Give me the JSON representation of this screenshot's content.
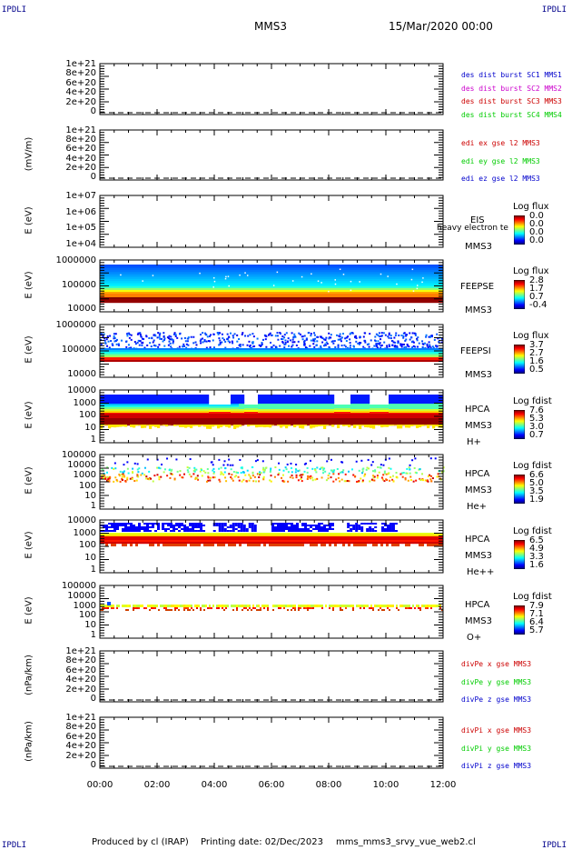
{
  "header": {
    "corner_label": "IPDLI",
    "mission": "MMS3",
    "datetime": "15/Mar/2020 00:00"
  },
  "footer": {
    "produced_by": "Produced by cl (IRAP)",
    "printing_date": "Printing date: 02/Dec/2023",
    "script": "mms_mms3_srvy_vue_web2.cl"
  },
  "colors": {
    "blue": "#0000cc",
    "magenta": "#cc00cc",
    "red": "#cc0000",
    "green": "#00cc00"
  },
  "chart_data": [
    {
      "type": "line",
      "panel": "des dist burst",
      "ylabel": "",
      "yticks": [
        "1e+21",
        "8e+20",
        "6e+20",
        "4e+20",
        "2e+20",
        "0"
      ],
      "ylim": [
        0,
        1e+21
      ],
      "grid": false,
      "series": [
        {
          "name": "des dist burst SC1 MMS1",
          "color": "#0000cc",
          "values": []
        },
        {
          "name": "des dist burst SC2 MMS2",
          "color": "#cc00cc",
          "values": []
        },
        {
          "name": "des dist burst SC3 MMS3",
          "color": "#cc0000",
          "values": []
        },
        {
          "name": "des dist burst SC4 MMS4",
          "color": "#00cc00",
          "values": []
        }
      ]
    },
    {
      "type": "line",
      "panel": "edi",
      "ylabel": "(mV/m)",
      "yticks": [
        "1e+21",
        "8e+20",
        "6e+20",
        "4e+20",
        "2e+20",
        "0"
      ],
      "ylim": [
        0,
        1e+21
      ],
      "grid": false,
      "series": [
        {
          "name": "edi ex gse l2 MMS3",
          "color": "#cc0000",
          "values": []
        },
        {
          "name": "edi ey gse l2 MMS3",
          "color": "#00cc00",
          "values": []
        },
        {
          "name": "edi ez gse l2 MMS3",
          "color": "#0000cc",
          "values": []
        }
      ]
    },
    {
      "type": "heatmap",
      "panel": "EIS",
      "ylabel": "E (eV)",
      "yticks": [
        "1e+07",
        "1e+06",
        "1e+05",
        "1e+04"
      ],
      "instrument": [
        "EIS",
        "heavy electron te",
        "MMS3"
      ],
      "colorbar": {
        "title": "Log flux",
        "values": [
          "0.0",
          "0.0",
          "0.0",
          "0.0"
        ]
      }
    },
    {
      "type": "heatmap",
      "panel": "FEEPSE",
      "ylabel": "E (eV)",
      "yticks": [
        "1000000",
        "100000",
        "10000"
      ],
      "instrument": [
        "FEEPSE",
        "MMS3"
      ],
      "colorbar": {
        "title": "Log flux",
        "values": [
          "2.8",
          "1.7",
          "0.7",
          "-0.4"
        ]
      }
    },
    {
      "type": "heatmap",
      "panel": "FEEPSI",
      "ylabel": "E (eV)",
      "yticks": [
        "1000000",
        "100000",
        "10000"
      ],
      "instrument": [
        "FEEPSI",
        "MMS3"
      ],
      "colorbar": {
        "title": "Log flux",
        "values": [
          "3.7",
          "2.7",
          "1.6",
          "0.5"
        ]
      }
    },
    {
      "type": "heatmap",
      "panel": "HPCA H+",
      "ylabel": "E (eV)",
      "yticks": [
        "10000",
        "1000",
        "100",
        "10",
        "1"
      ],
      "instrument": [
        "HPCA",
        "MMS3",
        "H+"
      ],
      "colorbar": {
        "title": "Log fdist",
        "values": [
          "7.6",
          "5.3",
          "3.0",
          "0.7"
        ]
      }
    },
    {
      "type": "heatmap",
      "panel": "HPCA He+",
      "ylabel": "E (eV)",
      "yticks": [
        "100000",
        "10000",
        "1000",
        "100",
        "10",
        "1"
      ],
      "instrument": [
        "HPCA",
        "MMS3",
        "He+"
      ],
      "colorbar": {
        "title": "Log fdist",
        "values": [
          "6.6",
          "5.0",
          "3.5",
          "1.9"
        ]
      }
    },
    {
      "type": "heatmap",
      "panel": "HPCA He++",
      "ylabel": "E (eV)",
      "yticks": [
        "10000",
        "1000",
        "100",
        "10",
        "1"
      ],
      "instrument": [
        "HPCA",
        "MMS3",
        "He++"
      ],
      "colorbar": {
        "title": "Log fdist",
        "values": [
          "6.5",
          "4.9",
          "3.3",
          "1.6"
        ]
      }
    },
    {
      "type": "heatmap",
      "panel": "HPCA O+",
      "ylabel": "E (eV)",
      "yticks": [
        "100000",
        "10000",
        "1000",
        "100",
        "10",
        "1"
      ],
      "instrument": [
        "HPCA",
        "MMS3",
        "O+"
      ],
      "colorbar": {
        "title": "Log fdist",
        "values": [
          "7.9",
          "7.1",
          "6.4",
          "5.7"
        ]
      }
    },
    {
      "type": "line",
      "panel": "divPe",
      "ylabel": "(nPa/km)",
      "yticks": [
        "1e+21",
        "8e+20",
        "6e+20",
        "4e+20",
        "2e+20",
        "0"
      ],
      "ylim": [
        0,
        1e+21
      ],
      "grid": false,
      "series": [
        {
          "name": "divPe x gse MMS3",
          "color": "#cc0000",
          "values": []
        },
        {
          "name": "divPe y gse MMS3",
          "color": "#00cc00",
          "values": []
        },
        {
          "name": "divPe z gse MMS3",
          "color": "#0000cc",
          "values": []
        }
      ]
    },
    {
      "type": "line",
      "panel": "divPi",
      "ylabel": "(nPa/km)",
      "yticks": [
        "1e+21",
        "8e+20",
        "6e+20",
        "4e+20",
        "2e+20",
        "0"
      ],
      "ylim": [
        0,
        1e+21
      ],
      "grid": false,
      "series": [
        {
          "name": "divPi x gse MMS3",
          "color": "#cc0000",
          "values": []
        },
        {
          "name": "divPi y gse MMS3",
          "color": "#00cc00",
          "values": []
        },
        {
          "name": "divPi z gse MMS3",
          "color": "#0000cc",
          "values": []
        }
      ]
    }
  ],
  "xaxis": {
    "ticks": [
      "00:00",
      "02:00",
      "04:00",
      "06:00",
      "08:00",
      "10:00",
      "12:00"
    ],
    "xlim": [
      "00:00",
      "12:00"
    ]
  }
}
